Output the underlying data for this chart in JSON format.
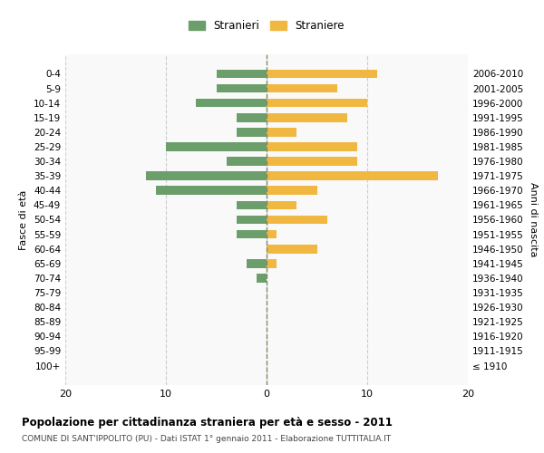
{
  "age_groups": [
    "100+",
    "95-99",
    "90-94",
    "85-89",
    "80-84",
    "75-79",
    "70-74",
    "65-69",
    "60-64",
    "55-59",
    "50-54",
    "45-49",
    "40-44",
    "35-39",
    "30-34",
    "25-29",
    "20-24",
    "15-19",
    "10-14",
    "5-9",
    "0-4"
  ],
  "birth_years": [
    "≤ 1910",
    "1911-1915",
    "1916-1920",
    "1921-1925",
    "1926-1930",
    "1931-1935",
    "1936-1940",
    "1941-1945",
    "1946-1950",
    "1951-1955",
    "1956-1960",
    "1961-1965",
    "1966-1970",
    "1971-1975",
    "1976-1980",
    "1981-1985",
    "1986-1990",
    "1991-1995",
    "1996-2000",
    "2001-2005",
    "2006-2010"
  ],
  "males": [
    0,
    0,
    0,
    0,
    0,
    0,
    1,
    2,
    0,
    3,
    3,
    3,
    11,
    12,
    4,
    10,
    3,
    3,
    7,
    5,
    5
  ],
  "females": [
    0,
    0,
    0,
    0,
    0,
    0,
    0,
    1,
    5,
    1,
    6,
    3,
    5,
    17,
    9,
    9,
    3,
    8,
    10,
    7,
    11
  ],
  "male_color": "#6b9e6b",
  "female_color": "#f0b840",
  "center_line_color": "#888866",
  "grid_color": "#cccccc",
  "bg_color": "#f9f9f9",
  "title": "Popolazione per cittadinanza straniera per età e sesso - 2011",
  "subtitle": "COMUNE DI SANT'IPPOLITO (PU) - Dati ISTAT 1° gennaio 2011 - Elaborazione TUTTITALIA.IT",
  "ylabel_left": "Fasce di età",
  "ylabel_right": "Anni di nascita",
  "legend_male": "Stranieri",
  "legend_female": "Straniere",
  "xlim": 20
}
